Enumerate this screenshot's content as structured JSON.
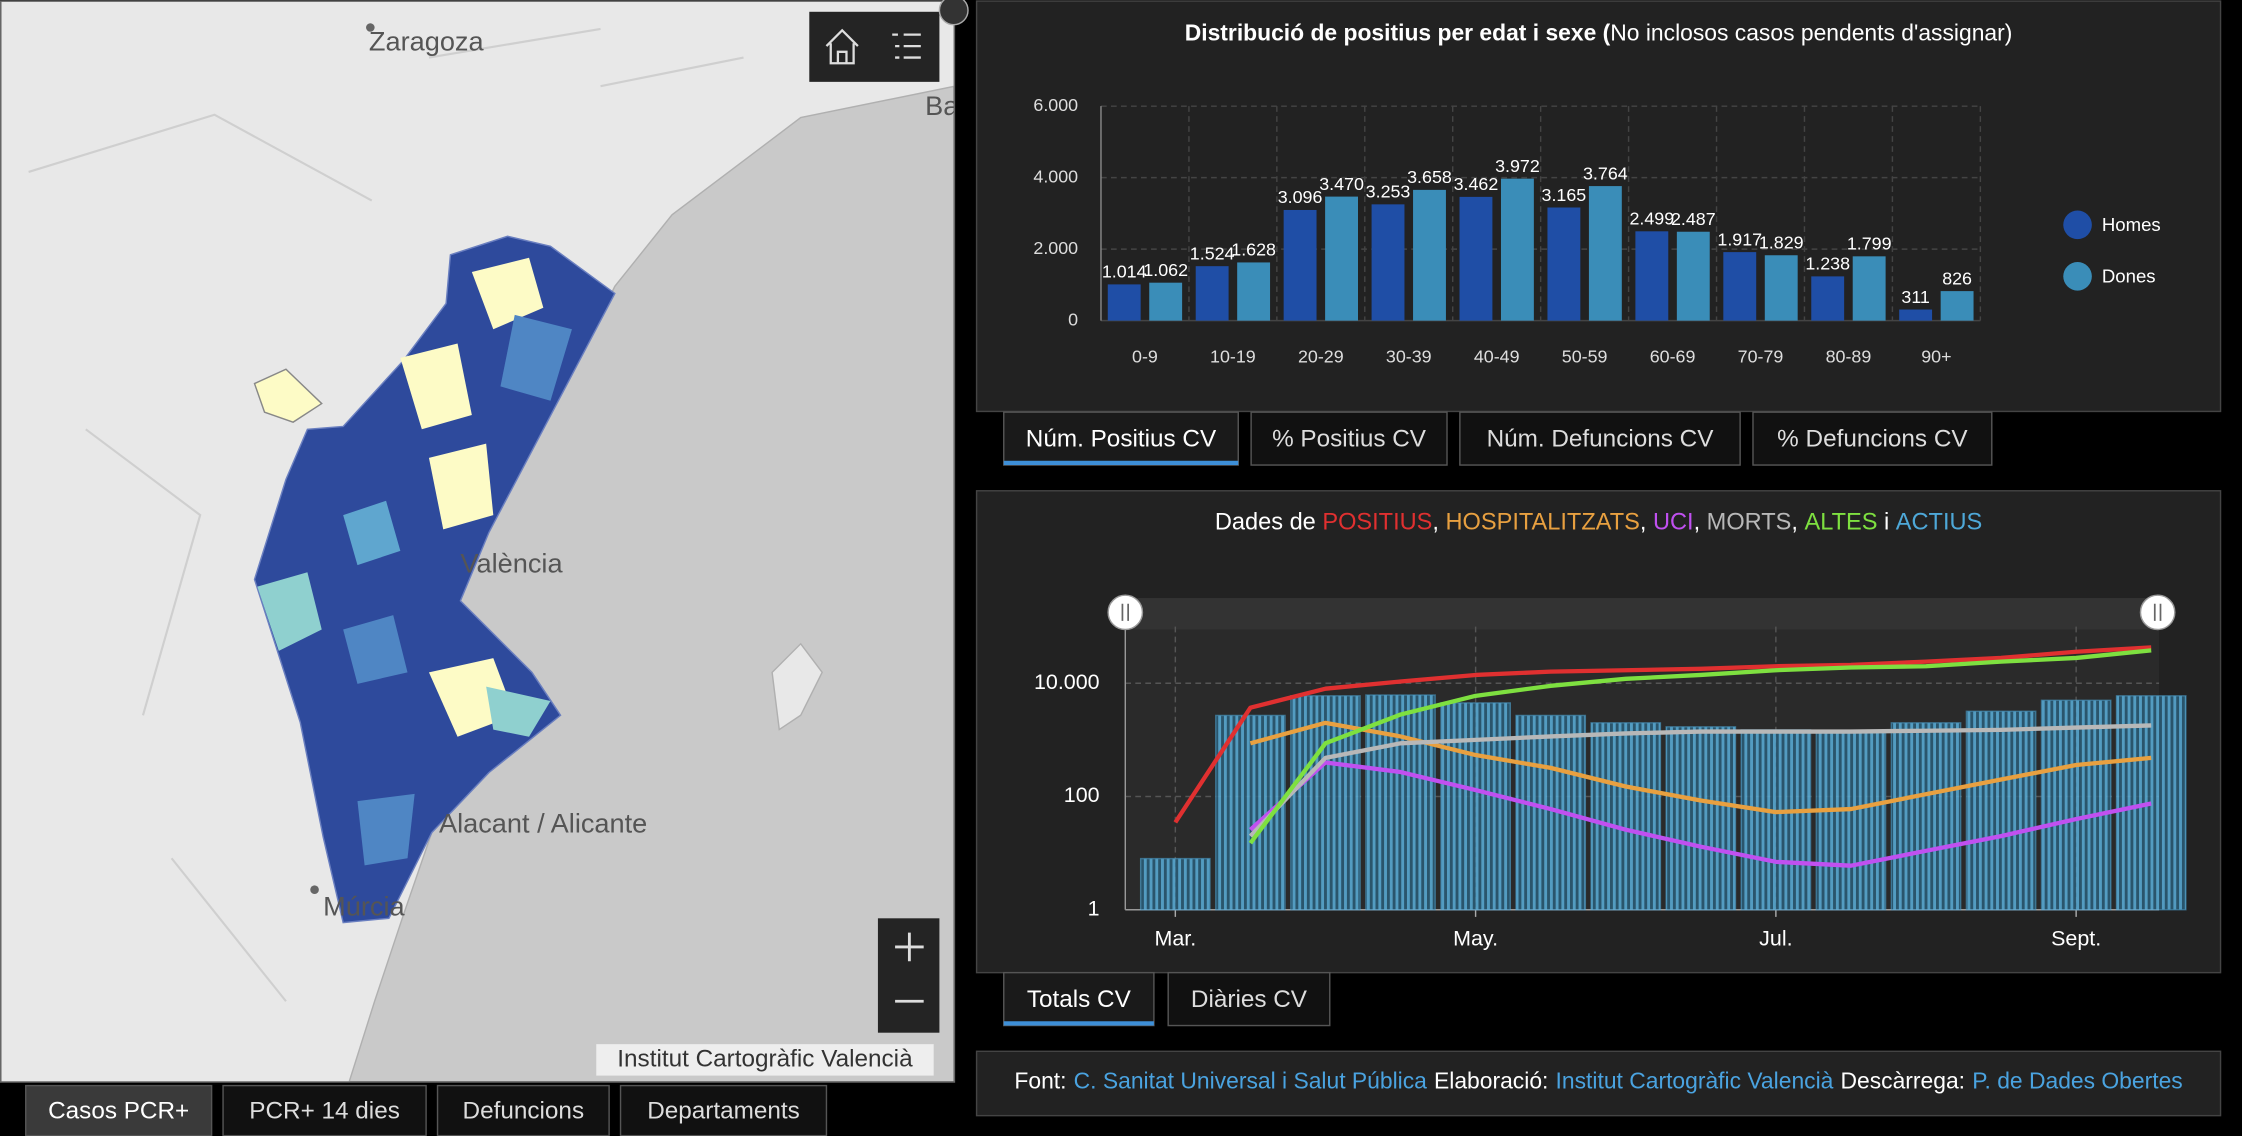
{
  "map": {
    "labels": [
      "Zaragoza",
      "Ba",
      "València",
      "Alacant / Alicante",
      "Múrcia"
    ],
    "attribution": "Institut Cartogràfic Valencià"
  },
  "map_tabs": [
    "Casos PCR+",
    "PCR+ 14 dies",
    "Defuncions",
    "Departaments"
  ],
  "chart_data": [
    {
      "type": "bar",
      "title": "Distribució de positius per edat i sexe (",
      "subtitle": "No inclosos casos pendents d'assignar)",
      "categories": [
        "0-9",
        "10-19",
        "20-29",
        "30-39",
        "40-49",
        "50-59",
        "60-69",
        "70-79",
        "80-89",
        "90+"
      ],
      "series": [
        {
          "name": "Homes",
          "color": "#1f4ea6",
          "values": [
            1014,
            1524,
            3096,
            3253,
            3462,
            3165,
            2499,
            1917,
            1238,
            311
          ],
          "value_labels": [
            "1.014",
            "1.524",
            "3.096",
            "3.253",
            "3.462",
            "3.165",
            "2.499",
            "1.917",
            "1.238",
            "311"
          ]
        },
        {
          "name": "Dones",
          "color": "#3a8db8",
          "values": [
            1062,
            1628,
            3470,
            3658,
            3972,
            3764,
            2487,
            1829,
            1799,
            826
          ],
          "value_labels": [
            "1.062",
            "1.628",
            "3.470",
            "3.658",
            "3.972",
            "3.764",
            "2.487",
            "1.829",
            "1.799",
            "826"
          ]
        }
      ],
      "ylim": [
        0,
        6000
      ],
      "yticks": [
        0,
        {
          "value": 2000,
          "label": "2.000"
        },
        {
          "value": 4000,
          "label": "4.000"
        },
        {
          "value": 6000,
          "label": "6.000"
        }
      ],
      "grid": true,
      "legend": "right"
    },
    {
      "type": "line",
      "title_prefix": "Dades de ",
      "title_separators": [
        ", ",
        ", ",
        ", ",
        ", ",
        " i "
      ],
      "categories": [
        "Mar.",
        null,
        null,
        null,
        "May.",
        null,
        null,
        null,
        "Jul.",
        null,
        null,
        null,
        "Sept.",
        null
      ],
      "log_scale": true,
      "ylim": [
        1,
        100000
      ],
      "yticks": [
        1,
        100,
        {
          "value": 10000,
          "label": "10.000"
        }
      ],
      "grid": true,
      "series": [
        {
          "name": "POSITIUS",
          "color": "#e03030",
          "kind": "line",
          "values": [
            35,
            3700,
            8000,
            10700,
            14000,
            16000,
            17000,
            18000,
            20000,
            21000,
            24000,
            28000,
            36000,
            43000
          ]
        },
        {
          "name": "HOSPITALITZATS",
          "color": "#e8a040",
          "kind": "line",
          "values": [
            null,
            870,
            2000,
            1150,
            540,
            320,
            150,
            85,
            53,
            60,
            110,
            200,
            360,
            480
          ]
        },
        {
          "name": "UCI",
          "color": "#c050f0",
          "kind": "line",
          "values": [
            null,
            26,
            400,
            270,
            130,
            60,
            26,
            13,
            7,
            6,
            11,
            20,
            40,
            75
          ]
        },
        {
          "name": "MORTS",
          "color": "#b8b8b8",
          "kind": "line",
          "values": [
            null,
            20,
            480,
            870,
            1000,
            1150,
            1300,
            1400,
            1400,
            1400,
            1450,
            1500,
            1650,
            1800
          ]
        },
        {
          "name": "ALTES",
          "color": "#7ee040",
          "kind": "line",
          "values": [
            null,
            15,
            870,
            2800,
            6000,
            9000,
            12000,
            14000,
            17000,
            19000,
            20000,
            24000,
            28000,
            38000
          ]
        },
        {
          "name": "ACTIUS",
          "color": "#4ea8d8",
          "kind": "bar",
          "values": [
            8,
            2700,
            6000,
            6200,
            4500,
            2700,
            2000,
            1700,
            1500,
            1400,
            2000,
            3200,
            5000,
            6000
          ]
        }
      ]
    }
  ],
  "bar_tabs": [
    "Núm. Positius CV",
    "% Positius CV",
    "Núm. Defuncions CV",
    "% Defuncions CV"
  ],
  "line_tabs": [
    "Totals CV",
    "Diàries CV"
  ],
  "footer": {
    "parts": [
      {
        "label": "Font:",
        "link": "C. Sanitat Universal i Salut Pública"
      },
      {
        "label": "Elaboració:",
        "link": "Institut Cartogràfic Valencià"
      },
      {
        "label": "Descàrrega:",
        "link": "P. de Dades Obertes"
      }
    ]
  }
}
